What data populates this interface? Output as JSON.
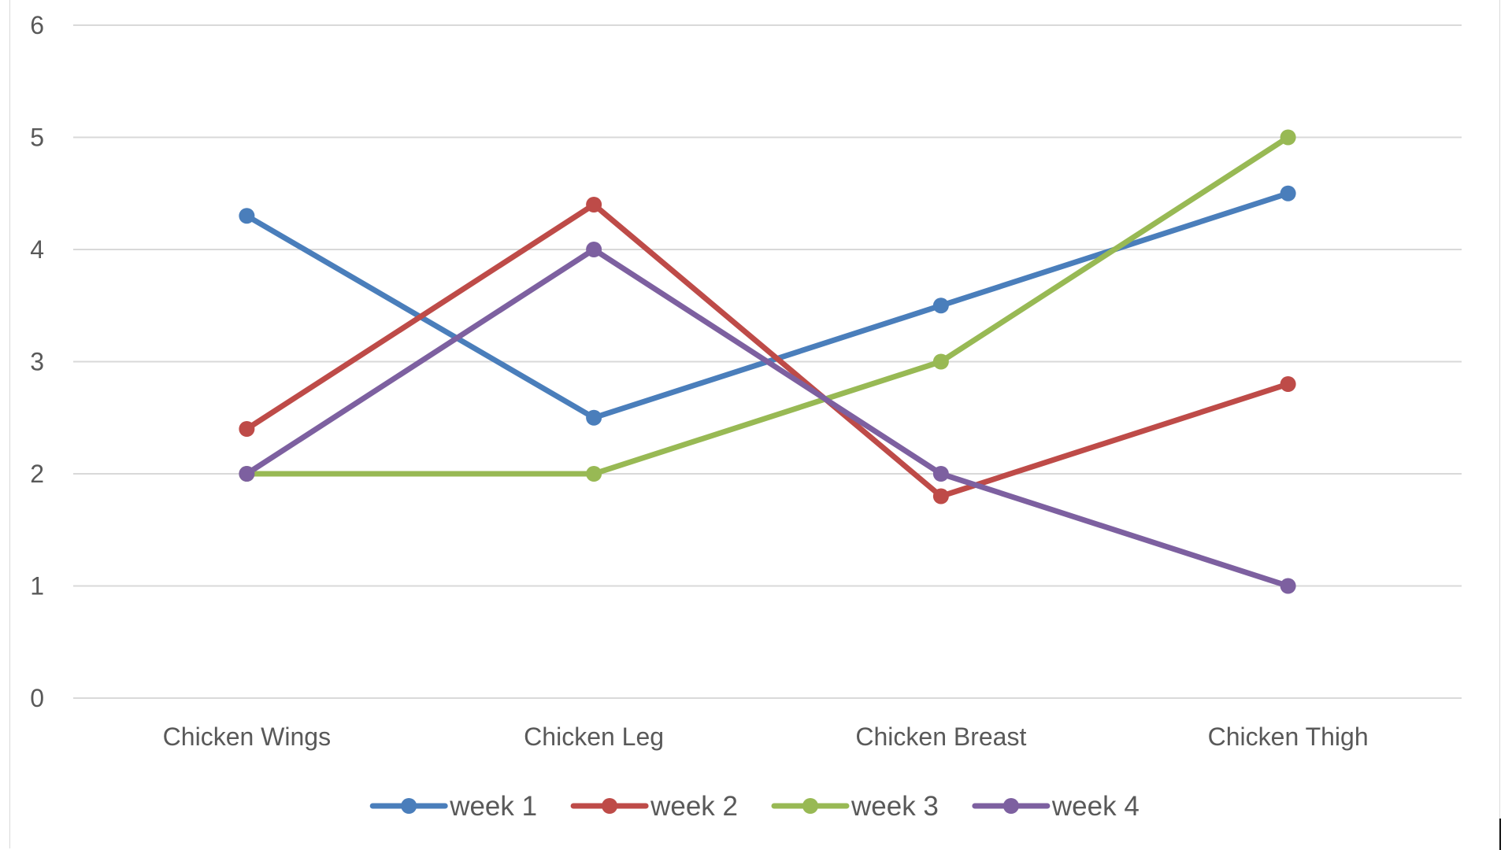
{
  "chart_data": {
    "type": "line",
    "categories": [
      "Chicken Wings",
      "Chicken Leg",
      "Chicken Breast",
      "Chicken Thigh"
    ],
    "series": [
      {
        "name": "week 1",
        "color": "#4a7ebb",
        "values": [
          4.3,
          2.5,
          3.5,
          4.5
        ]
      },
      {
        "name": "week 2",
        "color": "#be4b48",
        "values": [
          2.4,
          4.4,
          1.8,
          2.8
        ]
      },
      {
        "name": "week 3",
        "color": "#98b954",
        "values": [
          2,
          2,
          3,
          5
        ]
      },
      {
        "name": "week 4",
        "color": "#7d60a0",
        "values": [
          2,
          4,
          2,
          1
        ]
      }
    ],
    "yticks": [
      "0",
      "1",
      "2",
      "3",
      "4",
      "5",
      "6"
    ],
    "ylim": [
      0,
      6
    ],
    "grid": true,
    "gridline_color": "#d9d9d9",
    "legend_position": "bottom",
    "title": "",
    "xlabel": "",
    "ylabel": ""
  }
}
